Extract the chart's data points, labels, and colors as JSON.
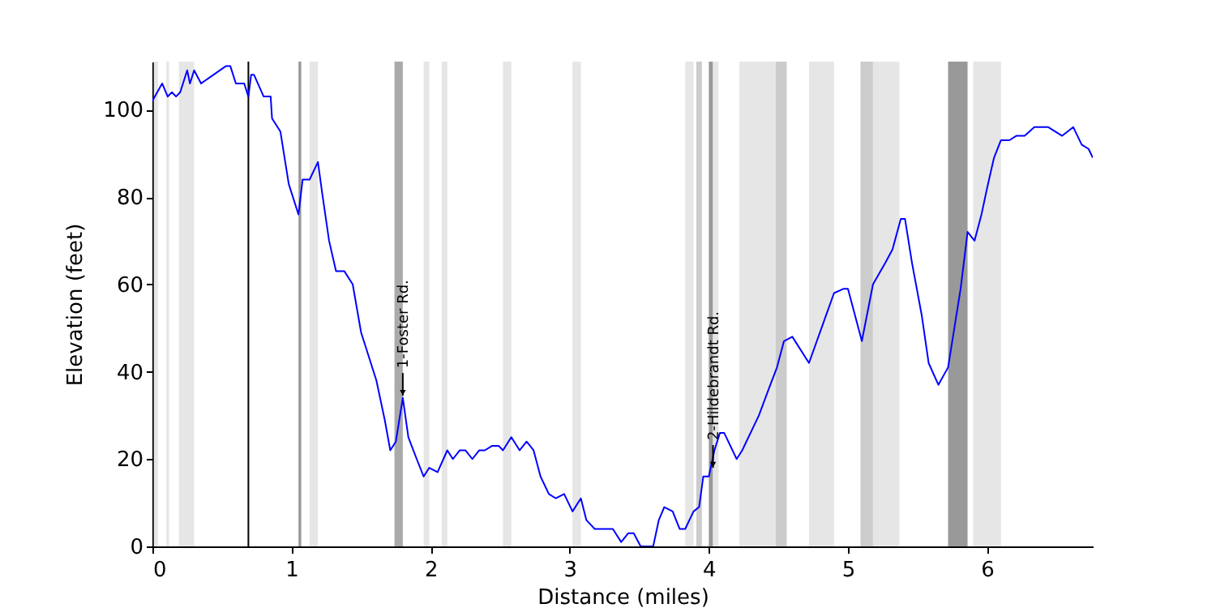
{
  "chart_data": {
    "type": "line",
    "xlabel": "Distance (miles)",
    "ylabel": "Elevation (feet)",
    "xlim": [
      0,
      6.76
    ],
    "ylim": [
      0,
      111
    ],
    "xticks": [
      0,
      1,
      2,
      3,
      4,
      5,
      6
    ],
    "yticks": [
      0,
      20,
      40,
      60,
      80,
      100
    ],
    "grid": false,
    "x": [
      0,
      0.07,
      0.11,
      0.14,
      0.17,
      0.2,
      0.25,
      0.27,
      0.3,
      0.35,
      0.53,
      0.56,
      0.6,
      0.66,
      0.69,
      0.71,
      0.73,
      0.8,
      0.85,
      0.86,
      0.92,
      0.98,
      1.05,
      1.08,
      1.13,
      1.19,
      1.22,
      1.27,
      1.32,
      1.38,
      1.44,
      1.5,
      1.61,
      1.67,
      1.71,
      1.75,
      1.8,
      1.84,
      1.9,
      1.95,
      1.99,
      2.05,
      2.12,
      2.16,
      2.21,
      2.25,
      2.3,
      2.35,
      2.39,
      2.44,
      2.49,
      2.52,
      2.58,
      2.64,
      2.69,
      2.74,
      2.79,
      2.85,
      2.9,
      2.96,
      3.02,
      3.08,
      3.12,
      3.18,
      3.31,
      3.37,
      3.42,
      3.46,
      3.51,
      3.6,
      3.64,
      3.68,
      3.74,
      3.79,
      3.83,
      3.89,
      3.93,
      3.96,
      4.0,
      4.04,
      4.08,
      4.11,
      4.2,
      4.24,
      4.36,
      4.43,
      4.49,
      4.54,
      4.6,
      4.72,
      4.81,
      4.9,
      4.97,
      5.0,
      5.1,
      5.18,
      5.27,
      5.32,
      5.38,
      5.41,
      5.46,
      5.53,
      5.58,
      5.65,
      5.72,
      5.81,
      5.86,
      5.91,
      5.96,
      6.0,
      6.05,
      6.1,
      6.16,
      6.21,
      6.27,
      6.34,
      6.44,
      6.54,
      6.62,
      6.68,
      6.73,
      6.76
    ],
    "series": [
      {
        "color": "#0000ff",
        "values": [
          102,
          106,
          103,
          104,
          103,
          104,
          109,
          106,
          109,
          106,
          110,
          110,
          106,
          106,
          103,
          108,
          108,
          103,
          103,
          98,
          95,
          83,
          76,
          84,
          84,
          88,
          81,
          70,
          63,
          63,
          60,
          49,
          38,
          29,
          22,
          24,
          34,
          25,
          20,
          16,
          18,
          17,
          22,
          20,
          22,
          22,
          20,
          22,
          22,
          23,
          23,
          22,
          25,
          22,
          24,
          22,
          16,
          12,
          11,
          12,
          8,
          11,
          6,
          4,
          4,
          1,
          3,
          3,
          0,
          0,
          6,
          9,
          8,
          4,
          4,
          8,
          9,
          16,
          16,
          22,
          26,
          26,
          20,
          22,
          30,
          36,
          41,
          47,
          48,
          42,
          50,
          58,
          59,
          59,
          47,
          60,
          65,
          68,
          75,
          75,
          65,
          53,
          42,
          37,
          41,
          59,
          72,
          70,
          76,
          82,
          89,
          93,
          93,
          94,
          94,
          96,
          96,
          94,
          96,
          92,
          91,
          89
        ]
      }
    ],
    "bands": [
      {
        "axis": "x",
        "from": 0.01,
        "to": 0.04,
        "color": "#e6e6e6"
      },
      {
        "axis": "x",
        "from": 0.1,
        "to": 0.12,
        "color": "#e6e6e6"
      },
      {
        "axis": "x",
        "from": 0.19,
        "to": 0.3,
        "color": "#e6e6e6"
      },
      {
        "axis": "x",
        "from": 1.05,
        "to": 1.07,
        "color": "#999999"
      },
      {
        "axis": "x",
        "from": 1.13,
        "to": 1.19,
        "color": "#e6e6e6"
      },
      {
        "axis": "x",
        "from": 1.74,
        "to": 1.8,
        "color": "#aaaaaa"
      },
      {
        "axis": "x",
        "from": 1.95,
        "to": 1.99,
        "color": "#e6e6e6"
      },
      {
        "axis": "x",
        "from": 2.08,
        "to": 2.12,
        "color": "#e6e6e6"
      },
      {
        "axis": "x",
        "from": 2.52,
        "to": 2.58,
        "color": "#e6e6e6"
      },
      {
        "axis": "x",
        "from": 3.02,
        "to": 3.08,
        "color": "#e6e6e6"
      },
      {
        "axis": "x",
        "from": 3.83,
        "to": 3.89,
        "color": "#e6e6e6"
      },
      {
        "axis": "x",
        "from": 3.91,
        "to": 3.95,
        "color": "#cccccc"
      },
      {
        "axis": "x",
        "from": 4.0,
        "to": 4.03,
        "color": "#999999"
      },
      {
        "axis": "x",
        "from": 4.03,
        "to": 4.07,
        "color": "#e6e6e6"
      },
      {
        "axis": "x",
        "from": 4.22,
        "to": 4.48,
        "color": "#e6e6e6"
      },
      {
        "axis": "x",
        "from": 4.48,
        "to": 4.56,
        "color": "#cccccc"
      },
      {
        "axis": "x",
        "from": 4.72,
        "to": 4.9,
        "color": "#e6e6e6"
      },
      {
        "axis": "x",
        "from": 5.09,
        "to": 5.18,
        "color": "#cccccc"
      },
      {
        "axis": "x",
        "from": 5.18,
        "to": 5.37,
        "color": "#e6e6e6"
      },
      {
        "axis": "x",
        "from": 5.72,
        "to": 5.86,
        "color": "#999999"
      },
      {
        "axis": "x",
        "from": 5.9,
        "to": 6.1,
        "color": "#e6e6e6"
      }
    ],
    "ref_lines": [
      {
        "axis": "x",
        "value": 0.69,
        "color": "#000000"
      }
    ],
    "annotations": [
      {
        "text": "1-Foster Rd.",
        "x": 1.8,
        "y": 34.5
      },
      {
        "text": "2-Hildebrandt Rd.",
        "x": 4.03,
        "y": 18
      }
    ]
  }
}
